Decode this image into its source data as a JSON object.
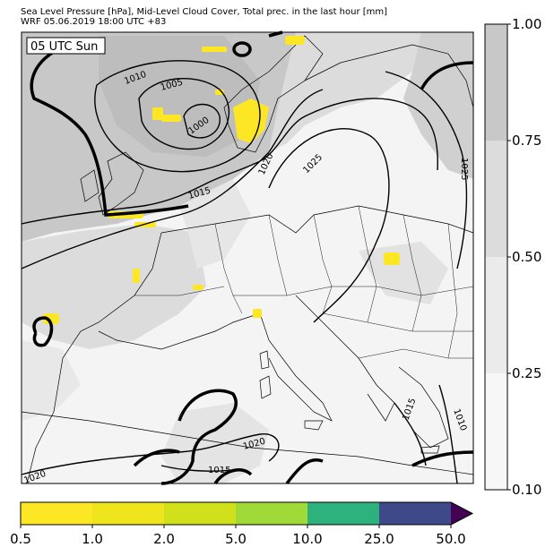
{
  "header": {
    "title_line1": "Sea Level Pressure [hPa], Mid-Level Cloud Cover, Total prec. in the last hour [mm]",
    "title_line2": "WRF 05.06.2019 18:00 UTC +83"
  },
  "map": {
    "time_label": "05 UTC Sun",
    "isobar_labels": [
      "1010",
      "1005",
      "1000",
      "1015",
      "1020",
      "1025",
      "1025",
      "1020",
      "1015",
      "1020",
      "1015",
      "1010"
    ]
  },
  "cloud_colorbar": {
    "ticks": [
      "1.00",
      "0.75",
      "0.50",
      "0.25",
      "0.10"
    ],
    "colors": [
      "#c8c8c8",
      "#dcdcdc",
      "#ebebeb",
      "#f7f7f7"
    ]
  },
  "precip_colorbar": {
    "ticks": [
      "0.5",
      "1.0",
      "2.0",
      "5.0",
      "10.0",
      "25.0",
      "50.0"
    ],
    "colors": [
      "#fde725",
      "#eee51c",
      "#d0e11c",
      "#a0da39",
      "#2db27d",
      "#3e4989",
      "#440154"
    ]
  }
}
